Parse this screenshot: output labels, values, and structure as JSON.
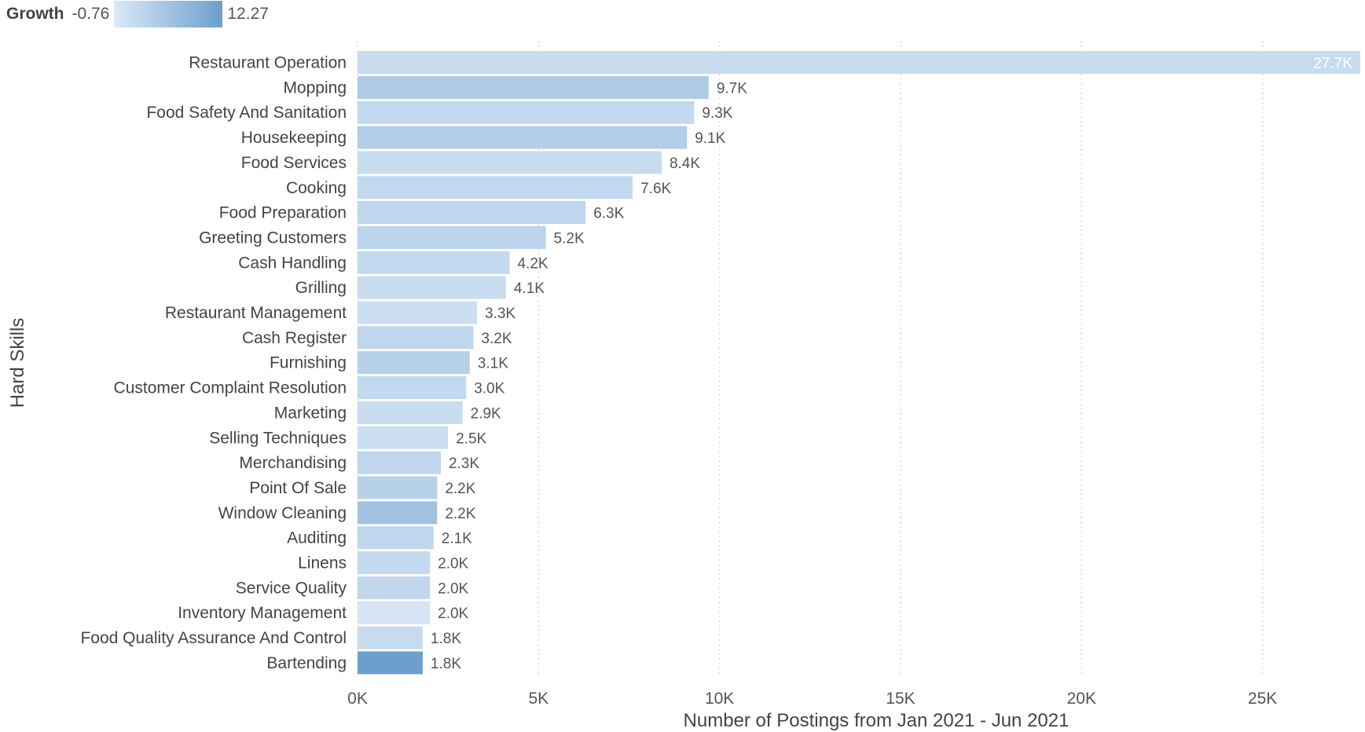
{
  "legend": {
    "title": "Growth",
    "min": "-0.76",
    "max": "12.27"
  },
  "colors": {
    "light": "#dbe9f8",
    "dark": "#6c9fcc",
    "grid": "#d9d9d9",
    "text": "#444444",
    "value_label_inside": "#ffffff"
  },
  "chart_data": {
    "type": "bar",
    "orientation": "horizontal",
    "ylabel": "Hard Skills",
    "xlabel": "Number of Postings from Jan 2021 - Jun 2021",
    "xlim": [
      0,
      27700
    ],
    "xticks": [
      0,
      5000,
      10000,
      15000,
      20000,
      25000
    ],
    "xtick_labels": [
      "0K",
      "5K",
      "10K",
      "15K",
      "20K",
      "25K"
    ],
    "grid": "vertical dotted",
    "legend_placement": "top-left",
    "color_encoding": "Growth",
    "categories": [
      "Restaurant Operation",
      "Mopping",
      "Food Safety And Sanitation",
      "Housekeeping",
      "Food Services",
      "Cooking",
      "Food Preparation",
      "Greeting Customers",
      "Cash Handling",
      "Grilling",
      "Restaurant Management",
      "Cash Register",
      "Furnishing",
      "Customer Complaint Resolution",
      "Marketing",
      "Selling Techniques",
      "Merchandising",
      "Point Of Sale",
      "Window Cleaning",
      "Auditing",
      "Linens",
      "Service Quality",
      "Inventory Management",
      "Food Quality Assurance And Control",
      "Bartending"
    ],
    "values": [
      27700,
      9700,
      9300,
      9100,
      8400,
      7600,
      6300,
      5200,
      4200,
      4100,
      3300,
      3200,
      3100,
      3000,
      2900,
      2500,
      2300,
      2200,
      2200,
      2100,
      2000,
      2000,
      2000,
      1800,
      1800
    ],
    "value_labels": [
      "27.7K",
      "9.7K",
      "9.3K",
      "9.1K",
      "8.4K",
      "7.6K",
      "6.3K",
      "5.2K",
      "4.2K",
      "4.1K",
      "3.3K",
      "3.2K",
      "3.1K",
      "3.0K",
      "2.9K",
      "2.5K",
      "2.3K",
      "2.2K",
      "2.2K",
      "2.1K",
      "2.0K",
      "2.0K",
      "2.0K",
      "1.8K",
      "1.8K"
    ],
    "growth": [
      1.5,
      4.5,
      2.0,
      4.0,
      1.5,
      2.0,
      2.5,
      3.0,
      2.0,
      1.5,
      1.0,
      2.5,
      3.5,
      2.0,
      1.5,
      1.0,
      2.5,
      3.5,
      6.0,
      2.5,
      2.0,
      2.5,
      0.0,
      1.5,
      12.27
    ]
  }
}
